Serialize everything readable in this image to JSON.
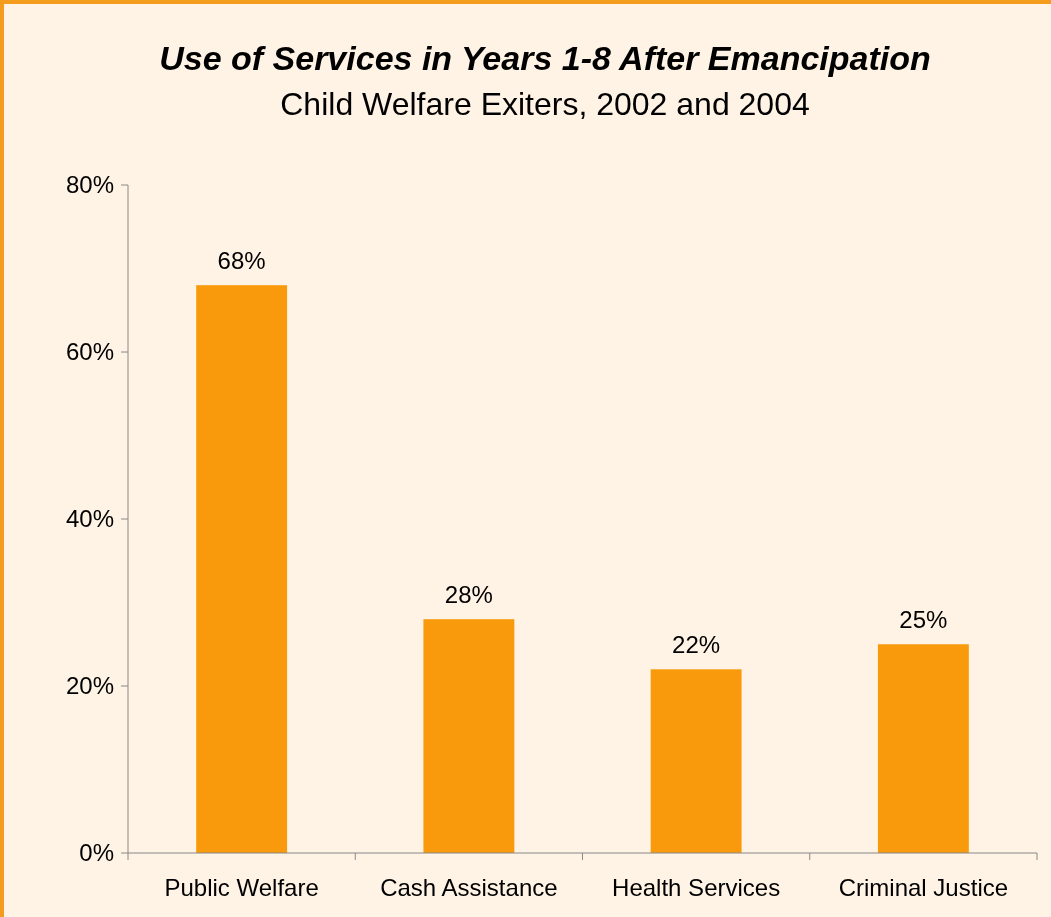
{
  "chart_data": {
    "type": "bar",
    "title": "Use of Services in Years 1-8 After Emancipation",
    "subtitle": "Child Welfare Exiters, 2002 and 2004",
    "categories": [
      "Public Welfare",
      "Cash Assistance",
      "Health Services",
      "Criminal Justice"
    ],
    "values": [
      68,
      28,
      22,
      25
    ],
    "value_labels": [
      "68%",
      "28%",
      "22%",
      "25%"
    ],
    "color": "#f99a0c",
    "ylim": [
      0,
      80
    ],
    "yticks": [
      {
        "value": 0,
        "label": "0%"
      },
      {
        "value": 20,
        "label": "20%"
      },
      {
        "value": 40,
        "label": "40%"
      },
      {
        "value": 60,
        "label": "60%"
      },
      {
        "value": 80,
        "label": "80%"
      }
    ],
    "grid": false
  }
}
